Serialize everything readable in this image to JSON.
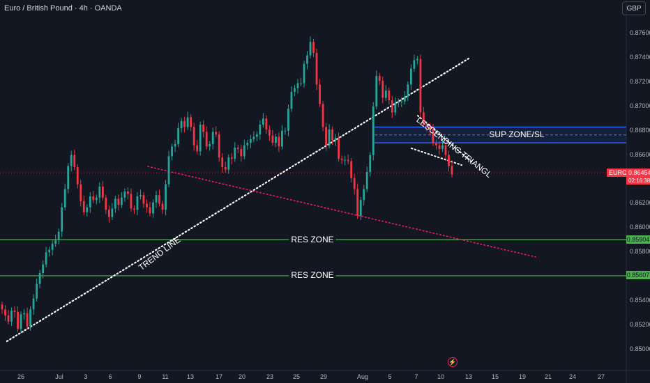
{
  "chart_data": {
    "type": "candlestick",
    "title": "Euro / British Pound · 4h · OANDA",
    "currency_button": "GBP",
    "ylim": [
      0.849,
      0.8776
    ],
    "y_ticks": [
      "0.87600",
      "0.87400",
      "0.87200",
      "0.87000",
      "0.86800",
      "0.86600",
      "0.86200",
      "0.86000",
      "0.85800",
      "0.85400",
      "0.85200",
      "0.85000"
    ],
    "x_ticks": [
      "26",
      "Jul",
      "3",
      "6",
      "9",
      "11",
      "13",
      "17",
      "20",
      "23",
      "25",
      "29",
      "Aug",
      "5",
      "7",
      "10",
      "13",
      "15",
      "19",
      "21",
      "24",
      "27"
    ],
    "series": [
      {
        "name": "EURGBP",
        "values": [
          0.8533,
          0.8528,
          0.8523,
          0.8532,
          0.8531,
          0.8517,
          0.8529,
          0.853,
          0.8519,
          0.8533,
          0.8542,
          0.8554,
          0.8563,
          0.857,
          0.858,
          0.8582,
          0.8587,
          0.859,
          0.8597,
          0.8617,
          0.8632,
          0.8651,
          0.866,
          0.865,
          0.8636,
          0.8622,
          0.8613,
          0.8617,
          0.8626,
          0.8623,
          0.8625,
          0.8634,
          0.8625,
          0.8615,
          0.8609,
          0.8616,
          0.8624,
          0.8619,
          0.8625,
          0.863,
          0.8628,
          0.8616,
          0.8615,
          0.8626,
          0.8627,
          0.862,
          0.8617,
          0.8612,
          0.8621,
          0.8627,
          0.862,
          0.8615,
          0.8636,
          0.8659,
          0.8667,
          0.8669,
          0.8682,
          0.8688,
          0.8683,
          0.8691,
          0.8683,
          0.8668,
          0.8663,
          0.8685,
          0.8679,
          0.8667,
          0.8669,
          0.8679,
          0.8677,
          0.8658,
          0.865,
          0.8648,
          0.8658,
          0.8657,
          0.8666,
          0.8665,
          0.8659,
          0.8668,
          0.867,
          0.8673,
          0.8675,
          0.8677,
          0.8685,
          0.869,
          0.8681,
          0.8676,
          0.867,
          0.8675,
          0.8667,
          0.868,
          0.868,
          0.8698,
          0.8712,
          0.8715,
          0.8719,
          0.8719,
          0.8735,
          0.8742,
          0.8753,
          0.8744,
          0.8718,
          0.8702,
          0.8683,
          0.8668,
          0.8681,
          0.8672,
          0.8674,
          0.8657,
          0.8656,
          0.8656,
          0.8655,
          0.8641,
          0.8632,
          0.861,
          0.8623,
          0.8632,
          0.8646,
          0.866,
          0.87,
          0.8725,
          0.8721,
          0.8707,
          0.8713,
          0.8705,
          0.8695,
          0.8703,
          0.8704,
          0.8704,
          0.8708,
          0.8718,
          0.8731,
          0.8738,
          0.8739,
          0.8695,
          0.8685,
          0.8683,
          0.8681,
          0.867,
          0.8668,
          0.8665,
          0.8668,
          0.866,
          0.8651,
          0.8644
        ]
      }
    ],
    "current_price": {
      "symbol": "EURGBP",
      "price": "0.86454",
      "countdown": "02:16:38",
      "value": 0.86454
    },
    "horizontal_levels": [
      {
        "label": "RES ZONE",
        "price": 0.85904,
        "tag": "0.85904"
      },
      {
        "label": "RES ZONE",
        "price": 0.85607,
        "tag": "0.85607"
      }
    ],
    "zones": [
      {
        "label": "SUP ZONE/SL",
        "from": 0.867,
        "to": 0.8683
      }
    ],
    "annotations": [
      "TREND LINE",
      "LESCENDING TRIANGL"
    ],
    "colors": {
      "up": "#26a69a",
      "down": "#f23645",
      "background": "#131722",
      "level": "#4caf50",
      "zone": "#2962ff",
      "dotted_red": "#e91e63",
      "dotted_white": "#ffffff"
    },
    "grid": false
  }
}
